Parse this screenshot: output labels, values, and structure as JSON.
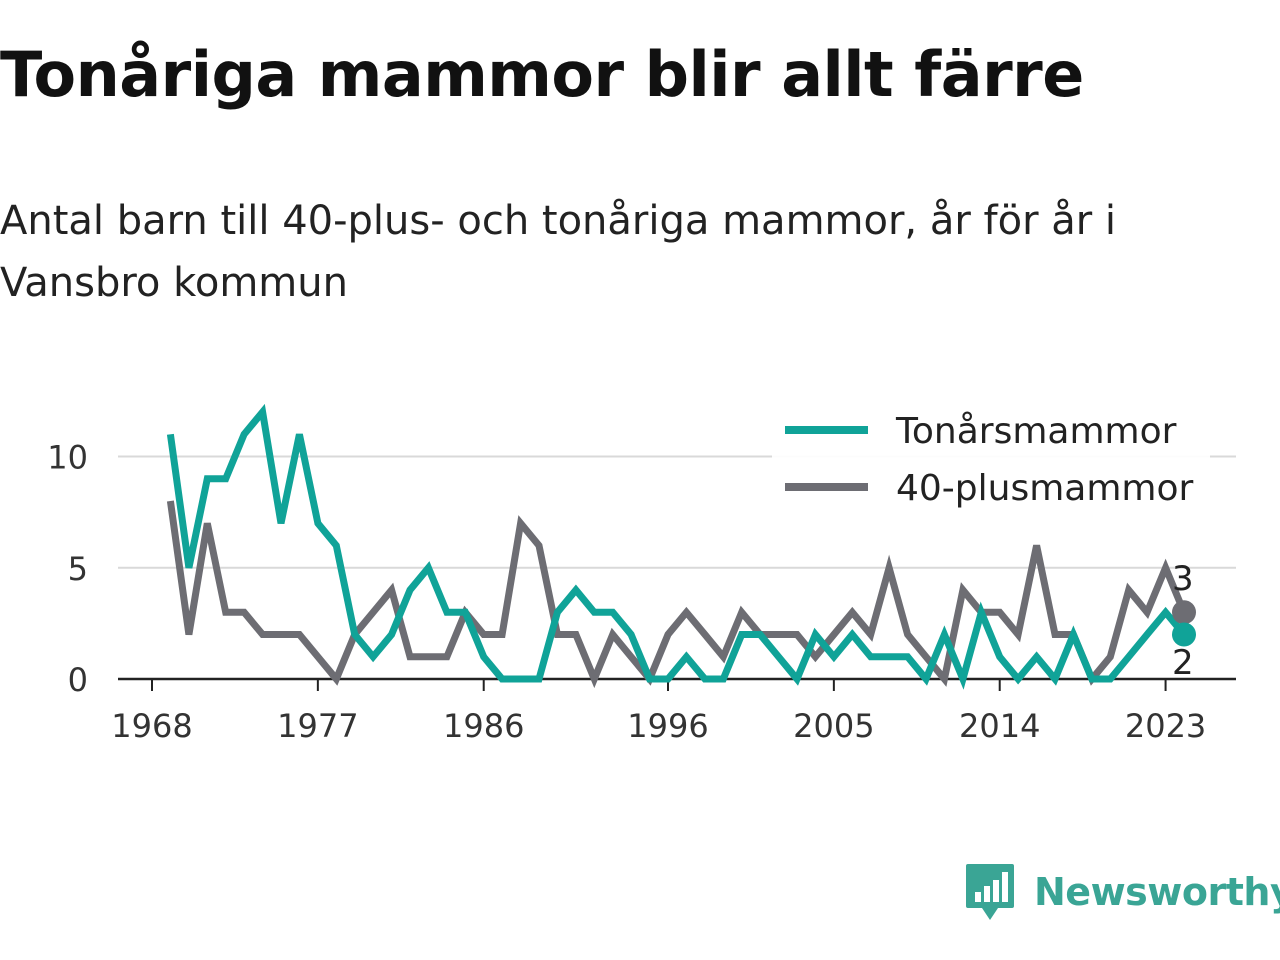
{
  "title": "Tonåriga mammor blir allt färre",
  "subtitle": "Antal barn till 40-plus- och tonåriga mammor, år för år i Vansbro kommun",
  "brand": {
    "name": "Newsworthy",
    "color": "#3aa595",
    "icon": "newsworthy-logo-icon"
  },
  "chart_data": {
    "type": "line",
    "title": "Tonåriga mammor blir allt färre",
    "subtitle": "Antal barn till 40-plus- och tonåriga mammor, år för år i Vansbro kommun",
    "xlabel": "",
    "ylabel": "",
    "xlim": [
      1968,
      2025
    ],
    "ylim": [
      0,
      12
    ],
    "x_ticks": [
      "1968",
      "1977",
      "1986",
      "1996",
      "2005",
      "2014",
      "2023"
    ],
    "y_ticks": [
      "0",
      "5",
      "10"
    ],
    "grid": "horizontal",
    "legend_position": "top-right",
    "x": [
      1969,
      1970,
      1971,
      1972,
      1973,
      1974,
      1975,
      1976,
      1977,
      1978,
      1979,
      1980,
      1981,
      1982,
      1983,
      1984,
      1985,
      1986,
      1987,
      1988,
      1989,
      1990,
      1991,
      1992,
      1993,
      1994,
      1995,
      1996,
      1997,
      1998,
      1999,
      2000,
      2001,
      2002,
      2003,
      2004,
      2005,
      2006,
      2007,
      2008,
      2009,
      2010,
      2011,
      2012,
      2013,
      2014,
      2015,
      2016,
      2017,
      2018,
      2019,
      2020,
      2021,
      2022,
      2023,
      2024
    ],
    "series": [
      {
        "name": "Tonårsmammor",
        "color": "#10a398",
        "end_label": "2",
        "values": [
          11,
          5,
          9,
          9,
          11,
          12,
          7,
          11,
          7,
          6,
          2,
          1,
          2,
          4,
          5,
          3,
          3,
          1,
          0,
          0,
          0,
          3,
          4,
          3,
          3,
          2,
          0,
          0,
          1,
          0,
          0,
          2,
          2,
          1,
          0,
          2,
          1,
          2,
          1,
          1,
          1,
          0,
          2,
          0,
          3,
          1,
          0,
          1,
          0,
          2,
          0,
          0,
          1,
          2,
          3,
          2
        ]
      },
      {
        "name": "40-plusmammor",
        "color": "#6d6d73",
        "end_label": "3",
        "values": [
          8,
          2,
          7,
          3,
          3,
          2,
          2,
          2,
          1,
          0,
          2,
          3,
          4,
          1,
          1,
          1,
          3,
          2,
          2,
          7,
          6,
          2,
          2,
          0,
          2,
          1,
          0,
          2,
          3,
          2,
          1,
          3,
          2,
          2,
          2,
          1,
          2,
          3,
          2,
          5,
          2,
          1,
          0,
          4,
          3,
          3,
          2,
          6,
          2,
          2,
          0,
          1,
          4,
          3,
          5,
          3
        ]
      }
    ]
  }
}
